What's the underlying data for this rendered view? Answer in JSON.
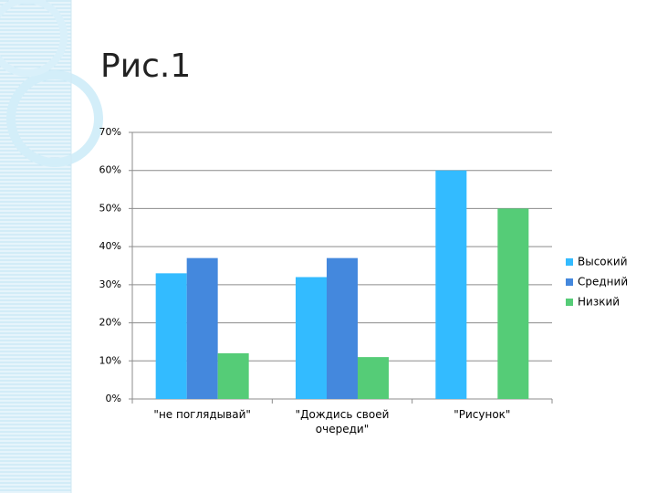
{
  "chart_data": {
    "type": "bar",
    "title": "Рис.1",
    "categories": [
      "\"не поглядывай\"",
      "\"Дождись своей очереди\"",
      "\"Рисунок\""
    ],
    "series": [
      {
        "name": "Высокий",
        "color": "#33bbff",
        "values": [
          33,
          32,
          60
        ]
      },
      {
        "name": "Средний",
        "color": "#4488dd",
        "values": [
          37,
          37,
          0
        ]
      },
      {
        "name": "Низкий",
        "color": "#55cc77",
        "values": [
          12,
          11,
          50
        ]
      }
    ],
    "ylim": [
      0,
      70
    ],
    "yticks": [
      {
        "value": 0,
        "label": "0%"
      },
      {
        "value": 10,
        "label": "10%"
      },
      {
        "value": 20,
        "label": "20%"
      },
      {
        "value": 30,
        "label": "30%"
      },
      {
        "value": 40,
        "label": "40%"
      },
      {
        "value": 50,
        "label": "50%"
      },
      {
        "value": 60,
        "label": "60%"
      },
      {
        "value": 70,
        "label": "70%"
      }
    ],
    "grid": true,
    "legend": "right"
  }
}
